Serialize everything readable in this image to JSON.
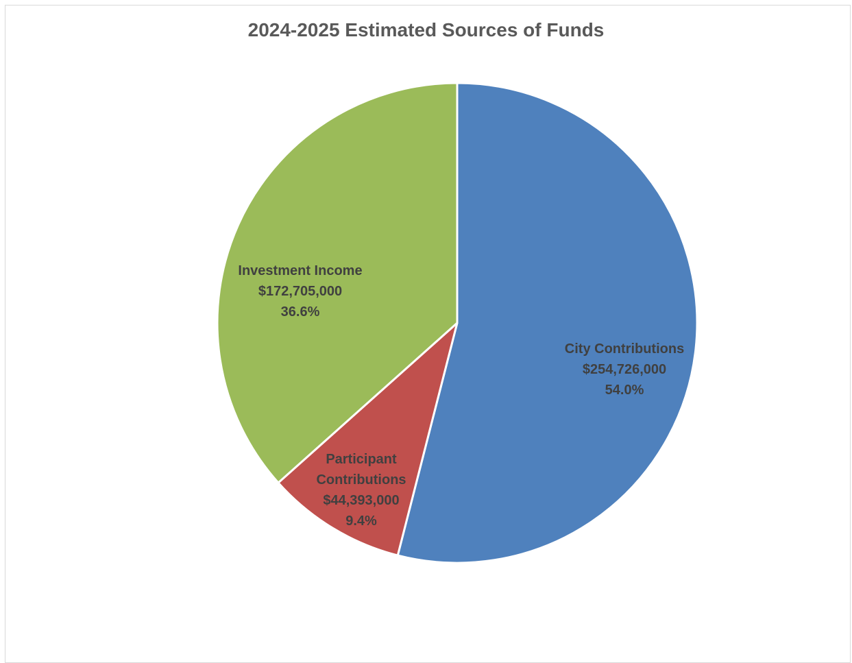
{
  "chart_data": {
    "type": "pie",
    "title": "2024-2025 Estimated Sources of Funds",
    "slices": [
      {
        "name": "City Contributions",
        "label_lines": [
          "City Contributions"
        ],
        "value": 254726000,
        "value_label": "$254,726,000",
        "percent": 54.0,
        "percent_label": "54.0%",
        "color": "#4f81bd"
      },
      {
        "name": "Participant Contributions",
        "label_lines": [
          "Participant",
          "Contributions"
        ],
        "value": 44393000,
        "value_label": "$44,393,000",
        "percent": 9.4,
        "percent_label": "9.4%",
        "color": "#c0504d"
      },
      {
        "name": "Investment Income",
        "label_lines": [
          "Investment Income"
        ],
        "value": 172705000,
        "value_label": "$172,705,000",
        "percent": 36.6,
        "percent_label": "36.6%",
        "color": "#9bbb59"
      }
    ],
    "legend": false
  }
}
